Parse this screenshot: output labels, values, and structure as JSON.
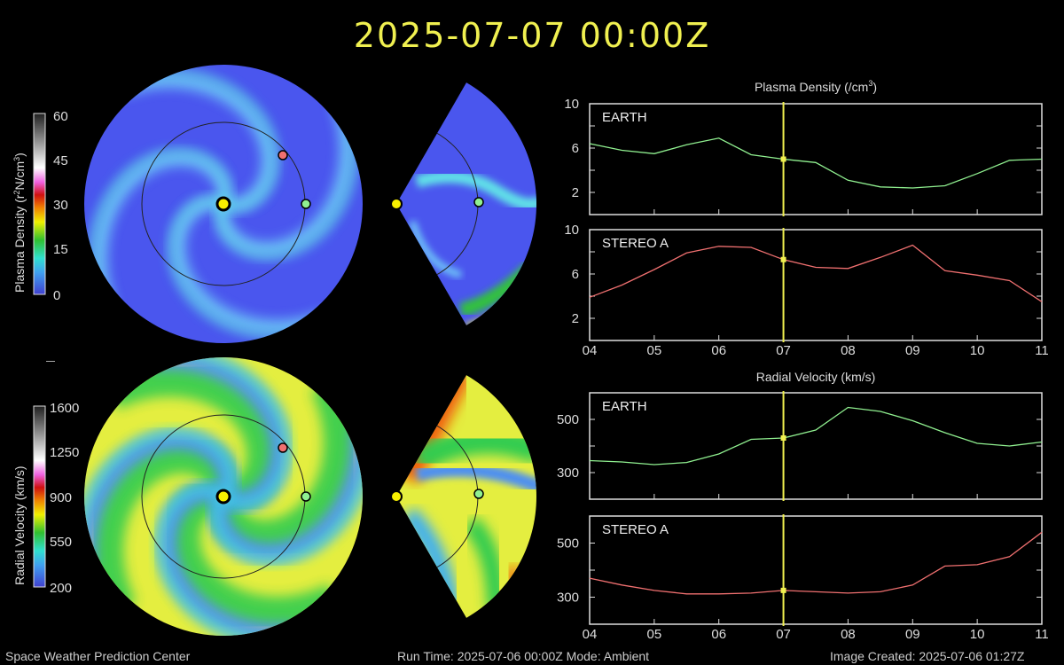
{
  "title": "2025-07-07 00:00Z",
  "colorbars": {
    "density": {
      "label": "Plasma Density (r²N/cm³)",
      "label_main": "Plasma Density (r",
      "label_sup1": "2",
      "label_mid": "N/cm",
      "label_sup2": "3",
      "label_end": ")",
      "ticks": [
        "60",
        "45",
        "30",
        "15",
        "0"
      ]
    },
    "velocity": {
      "label": "Radial Velocity (km/s)",
      "ticks": [
        "1600",
        "1250",
        "900",
        "550",
        "200"
      ]
    }
  },
  "footer": {
    "center": "Space Weather Prediction Center",
    "run": "Run Time: 2025-07-06 00:00Z  Mode: Ambient",
    "created": "Image Created: 2025-07-06 01:27Z"
  },
  "colors": {
    "earth": "#90f090",
    "stereo": "#f07070",
    "marker": "#f0f050",
    "sun": "#f8f000"
  },
  "chart_data": [
    {
      "type": "line",
      "title": "Plasma Density (/cm³)",
      "title_main": "Plasma Density (/cm",
      "title_sup": "3",
      "x": [
        4,
        4.5,
        5,
        5.5,
        6,
        6.5,
        7,
        7.5,
        8,
        8.5,
        9,
        9.5,
        10,
        10.5,
        11
      ],
      "xticks": [
        "04",
        "05",
        "06",
        "07",
        "08",
        "09",
        "10",
        "11"
      ],
      "xlim": [
        4,
        11
      ],
      "ylim": [
        0,
        10
      ],
      "yticks": [
        10,
        6,
        2
      ],
      "current_x": 7,
      "series": [
        {
          "name": "EARTH",
          "color": "#90f090",
          "values": [
            6.4,
            5.8,
            5.5,
            6.3,
            6.9,
            5.4,
            5.0,
            4.7,
            3.1,
            2.5,
            2.4,
            2.6,
            3.7,
            4.9,
            5.0
          ],
          "current": 5.0
        },
        {
          "name": "STEREO A",
          "color": "#f07070",
          "values": [
            3.9,
            5.0,
            6.4,
            7.9,
            8.5,
            8.4,
            7.3,
            6.6,
            6.5,
            7.5,
            8.6,
            6.3,
            5.9,
            5.4,
            3.5
          ],
          "current": 7.3
        }
      ]
    },
    {
      "type": "line",
      "title": "Radial Velocity (km/s)",
      "x": [
        4,
        4.5,
        5,
        5.5,
        6,
        6.5,
        7,
        7.5,
        8,
        8.5,
        9,
        9.5,
        10,
        10.5,
        11
      ],
      "xticks": [
        "04",
        "05",
        "06",
        "07",
        "08",
        "09",
        "10",
        "11"
      ],
      "xlim": [
        4,
        11
      ],
      "ylim": [
        200,
        600
      ],
      "yticks": [
        500,
        300
      ],
      "current_x": 7,
      "series": [
        {
          "name": "EARTH",
          "color": "#90f090",
          "values": [
            345,
            340,
            330,
            338,
            370,
            425,
            430,
            460,
            545,
            530,
            495,
            450,
            410,
            400,
            415
          ],
          "current": 430
        },
        {
          "name": "STEREO A",
          "color": "#f07070",
          "values": [
            370,
            345,
            325,
            312,
            312,
            315,
            325,
            320,
            315,
            320,
            345,
            415,
            420,
            450,
            540
          ],
          "current": 325
        }
      ]
    }
  ]
}
